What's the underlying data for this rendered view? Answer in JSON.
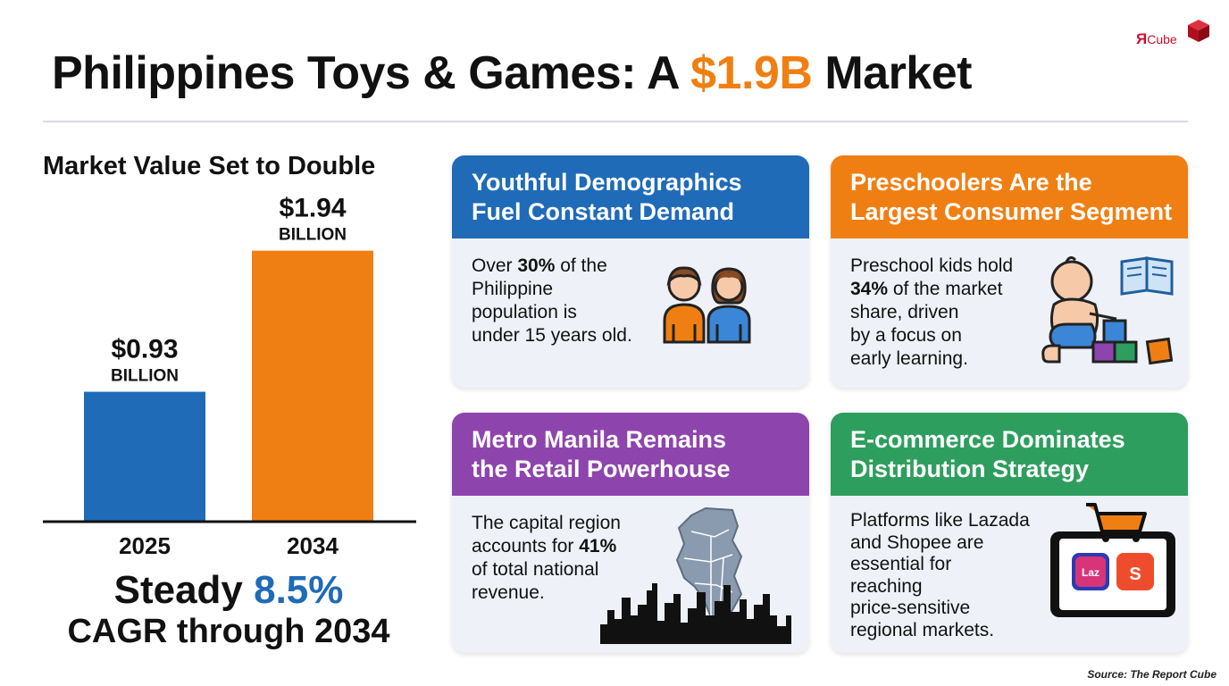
{
  "logo": {
    "main": "Я",
    "sub": "Cube",
    "color": "#c8102e"
  },
  "title": {
    "before": "Philippines Toys & Games: A ",
    "highlight": "$1.9B",
    "after": " Market"
  },
  "chart_title": "Market Value Set to Double",
  "chart_data": {
    "type": "bar",
    "categories": [
      "2025",
      "2034"
    ],
    "values": [
      0.93,
      1.94
    ],
    "value_labels": [
      "$0.93",
      "$1.94"
    ],
    "unit_label": "BILLION",
    "colors": [
      "#1f6bb8",
      "#f07f13"
    ],
    "title": "Market Value Set to Double",
    "xlabel": "",
    "ylabel": "",
    "ylim": [
      0,
      2.2
    ],
    "grid": false,
    "legend": "none"
  },
  "cagr": {
    "prefix": "Steady ",
    "value": "8.5%",
    "line2": "CAGR through 2034"
  },
  "cards": [
    {
      "id": "demographics",
      "color": "#1f6bb8",
      "title_lines": [
        "Youthful Demographics",
        "Fuel Constant Demand"
      ],
      "body_lines": [
        [
          "Over ",
          "30%",
          " of the"
        ],
        [
          "Philippine"
        ],
        [
          "population is"
        ],
        [
          "under 15 years old."
        ]
      ],
      "icon": "children-icon"
    },
    {
      "id": "preschoolers",
      "color": "#f07f13",
      "title_lines": [
        "Preschoolers Are the",
        "Largest Consumer Segment"
      ],
      "body_lines": [
        [
          "Preschool kids hold"
        ],
        [
          "",
          "34%",
          " of the market"
        ],
        [
          "share, driven"
        ],
        [
          "by a focus on"
        ],
        [
          "early learning."
        ]
      ],
      "icon": "baby-blocks-icon"
    },
    {
      "id": "metro-manila",
      "color": "#8e44ad",
      "title_lines": [
        "Metro Manila Remains",
        "the Retail Powerhouse"
      ],
      "body_lines": [
        [
          "The capital region"
        ],
        [
          "accounts for ",
          "41%",
          ""
        ],
        [
          "of total national"
        ],
        [
          "revenue."
        ]
      ],
      "icon": "city-map-icon"
    },
    {
      "id": "ecommerce",
      "color": "#2e9e5e",
      "title_lines": [
        "E-commerce Dominates",
        "Distribution Strategy"
      ],
      "body_lines": [
        [
          "Platforms like Lazada"
        ],
        [
          "and Shopee are"
        ],
        [
          "essential for"
        ],
        [
          "reaching"
        ],
        [
          "price-sensitive"
        ],
        [
          "regional markets."
        ]
      ],
      "icon": "tablet-cart-icon",
      "app_labels": [
        "Laz",
        "S"
      ]
    }
  ],
  "source": "Source: The Report Cube"
}
